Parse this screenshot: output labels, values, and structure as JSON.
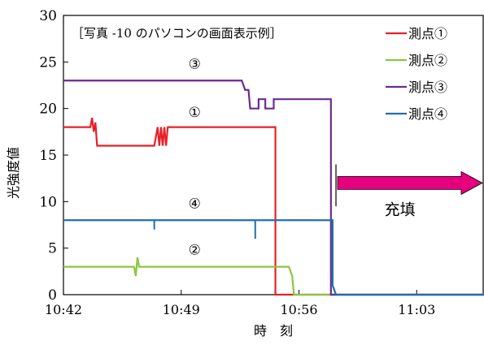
{
  "chart_data": {
    "type": "line",
    "title": "［写真 -10 のパソコンの画面表示例］",
    "xlabel": "時　刻",
    "ylabel": "光強度値",
    "xlim": [
      "10:42",
      "11:07"
    ],
    "ylim": [
      0,
      30
    ],
    "x_ticks": [
      "10:42",
      "10:49",
      "10:56",
      "11:03"
    ],
    "y_ticks": [
      0,
      5,
      10,
      15,
      20,
      25,
      30
    ],
    "grid": false,
    "legend_position": "top-right",
    "series": [
      {
        "name": "測点①",
        "color": "#e8202a",
        "points": [
          [
            "10:42",
            18
          ],
          [
            "10:43.6",
            18
          ],
          [
            "10:43.7",
            19
          ],
          [
            "10:43.8",
            17.5
          ],
          [
            "10:43.9",
            18.5
          ],
          [
            "10:44.0",
            16
          ],
          [
            "10:47.4",
            16
          ],
          [
            "10:47.5",
            17
          ],
          [
            "10:47.6",
            18
          ],
          [
            "10:47.7",
            16
          ],
          [
            "10:47.8",
            18
          ],
          [
            "10:47.9",
            16
          ],
          [
            "10:48.0",
            18
          ],
          [
            "10:48.1",
            16
          ],
          [
            "10:48.2",
            18
          ],
          [
            "10:54.6",
            18
          ],
          [
            "10:54.6",
            0
          ],
          [
            "11:07",
            0
          ]
        ]
      },
      {
        "name": "測点②",
        "color": "#8cc63f",
        "points": [
          [
            "10:42",
            3
          ],
          [
            "10:46.2",
            3
          ],
          [
            "10:46.3",
            2
          ],
          [
            "10:46.4",
            4
          ],
          [
            "10:46.5",
            3
          ],
          [
            "10:55.4",
            3
          ],
          [
            "10:55.6",
            2
          ],
          [
            "10:55.7",
            0
          ],
          [
            "11:07",
            0
          ]
        ]
      },
      {
        "name": "測点③",
        "color": "#6a2c8e",
        "points": [
          [
            "10:42",
            23
          ],
          [
            "10:52.6",
            23
          ],
          [
            "10:52.8",
            22
          ],
          [
            "10:53.0",
            22
          ],
          [
            "10:53.1",
            20
          ],
          [
            "10:53.6",
            20
          ],
          [
            "10:53.6",
            21
          ],
          [
            "10:54.0",
            21
          ],
          [
            "10:54.0",
            20
          ],
          [
            "10:54.5",
            20
          ],
          [
            "10:54.5",
            21
          ],
          [
            "10:57.9",
            21
          ],
          [
            "10:57.9",
            0
          ],
          [
            "11:07",
            0
          ]
        ]
      },
      {
        "name": "測点④",
        "color": "#1e6fb0",
        "points": [
          [
            "10:42",
            8
          ],
          [
            "10:58.0",
            8
          ],
          [
            "10:58.0",
            1
          ],
          [
            "10:58.2",
            0
          ],
          [
            "11:07",
            0
          ]
        ],
        "spikes": [
          [
            "10:47.4",
            7
          ],
          [
            "10:53.4",
            6
          ]
        ]
      }
    ],
    "annotations": [
      {
        "text": "③",
        "x": "10:49.8",
        "y": 24.3
      },
      {
        "text": "①",
        "x": "10:49.8",
        "y": 19.1
      },
      {
        "text": "④",
        "x": "10:49.8",
        "y": 9.3
      },
      {
        "text": "②",
        "x": "10:49.8",
        "y": 4.3
      },
      {
        "text": "充填",
        "x": "11:02",
        "y": 8.6
      }
    ],
    "arrow": {
      "from": "10:58.2",
      "to": "11:07",
      "y": 12,
      "color": "#e6007e",
      "vline_x": "10:58.2",
      "vline_y": [
        9.5,
        14
      ]
    }
  }
}
